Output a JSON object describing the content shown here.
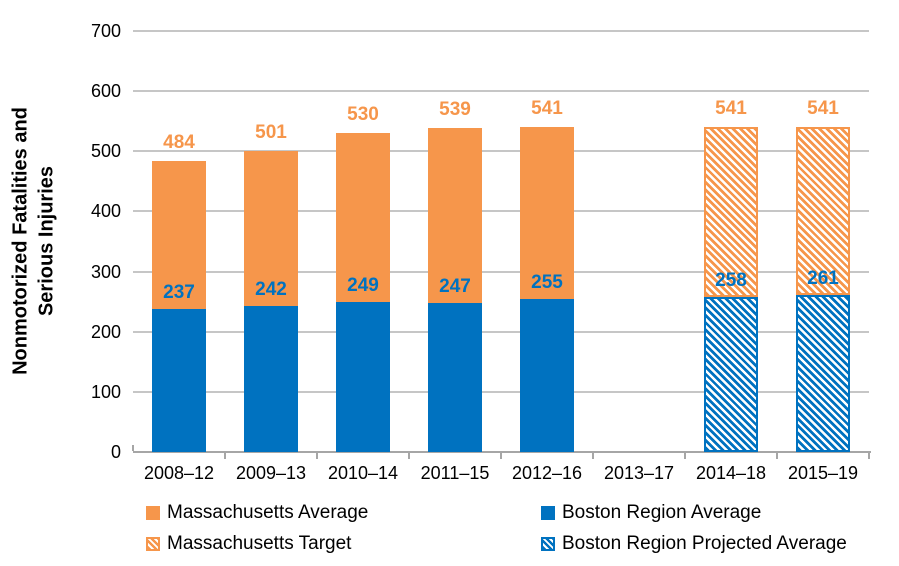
{
  "colors": {
    "orange": "#F6964B",
    "blue": "#0072C0",
    "gridline": "#C6C6C6",
    "axis": "#A6A6A6",
    "background": "#FFFFFF"
  },
  "chart_data": {
    "type": "bar",
    "stacked": true,
    "title": "",
    "xlabel": "",
    "ylabel": "Nonmotorized Fatalities and\nSerious Injuries",
    "ylim": [
      0,
      700
    ],
    "ytick_interval": 100,
    "grid": true,
    "legend_position": "bottom",
    "categories": [
      "2008–12",
      "2009–13",
      "2010–14",
      "2011–15",
      "2012–16",
      "2013–17",
      "2014–18",
      "2015–19"
    ],
    "series": [
      {
        "name": "Massachusetts Average",
        "color": "orange",
        "pattern": "solid",
        "role": "total",
        "values": [
          484,
          501,
          530,
          539,
          541,
          null,
          null,
          null
        ]
      },
      {
        "name": "Boston Region Average",
        "color": "blue",
        "pattern": "solid",
        "role": "bottom",
        "values": [
          237,
          242,
          249,
          247,
          255,
          null,
          null,
          null
        ]
      },
      {
        "name": "Massachusetts Target",
        "color": "orange",
        "pattern": "hatched",
        "role": "total",
        "values": [
          null,
          null,
          null,
          null,
          null,
          null,
          541,
          541
        ]
      },
      {
        "name": "Boston Region Projected Average",
        "color": "blue",
        "pattern": "hatched",
        "role": "bottom",
        "values": [
          null,
          null,
          null,
          null,
          null,
          null,
          258,
          261
        ]
      }
    ]
  }
}
